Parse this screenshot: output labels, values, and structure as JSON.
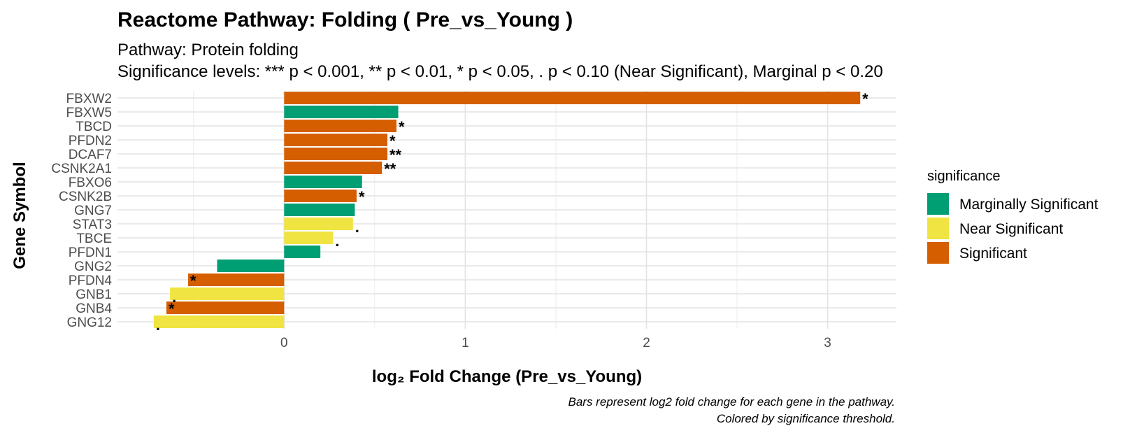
{
  "chart_data": {
    "type": "bar",
    "orientation": "horizontal",
    "title": "Reactome Pathway: Folding ( Pre_vs_Young )",
    "subtitle_lines": [
      "Pathway: Protein folding",
      "Significance levels: *** p < 0.001, ** p < 0.01, * p < 0.05, . p < 0.10 (Near Significant), Marginal p < 0.20"
    ],
    "xlabel": "log₂ Fold Change (Pre_vs_Young)",
    "ylabel": "Gene Symbol",
    "xlim": [
      -0.92,
      3.38
    ],
    "x_ticks": [
      0,
      1,
      2,
      3
    ],
    "grid": true,
    "legend": {
      "title": "significance",
      "position": "right",
      "entries": [
        {
          "label": "Marginally Significant",
          "color": "#009E73"
        },
        {
          "label": "Near Significant",
          "color": "#F0E442"
        },
        {
          "label": "Significant",
          "color": "#D55E00"
        }
      ]
    },
    "bars": [
      {
        "gene": "FBXW2",
        "value": 3.18,
        "significance": "Significant",
        "label": "*"
      },
      {
        "gene": "FBXW5",
        "value": 0.63,
        "significance": "Marginally Significant",
        "label": ""
      },
      {
        "gene": "TBCD",
        "value": 0.62,
        "significance": "Significant",
        "label": "*"
      },
      {
        "gene": "PFDN2",
        "value": 0.57,
        "significance": "Significant",
        "label": "*"
      },
      {
        "gene": "DCAF7",
        "value": 0.57,
        "significance": "Significant",
        "label": "**"
      },
      {
        "gene": "CSNK2A1",
        "value": 0.54,
        "significance": "Significant",
        "label": "**"
      },
      {
        "gene": "FBXO6",
        "value": 0.43,
        "significance": "Marginally Significant",
        "label": ""
      },
      {
        "gene": "CSNK2B",
        "value": 0.4,
        "significance": "Significant",
        "label": "*"
      },
      {
        "gene": "GNG7",
        "value": 0.39,
        "significance": "Marginally Significant",
        "label": ""
      },
      {
        "gene": "STAT3",
        "value": 0.38,
        "significance": "Near Significant",
        "label": "."
      },
      {
        "gene": "TBCE",
        "value": 0.27,
        "significance": "Near Significant",
        "label": "."
      },
      {
        "gene": "PFDN1",
        "value": 0.2,
        "significance": "Marginally Significant",
        "label": ""
      },
      {
        "gene": "GNG2",
        "value": -0.37,
        "significance": "Marginally Significant",
        "label": ""
      },
      {
        "gene": "PFDN4",
        "value": -0.53,
        "significance": "Significant",
        "label": "*"
      },
      {
        "gene": "GNB1",
        "value": -0.63,
        "significance": "Near Significant",
        "label": "."
      },
      {
        "gene": "GNB4",
        "value": -0.65,
        "significance": "Significant",
        "label": "*"
      },
      {
        "gene": "GNG12",
        "value": -0.72,
        "significance": "Near Significant",
        "label": "."
      }
    ],
    "caption_lines": [
      "Bars represent log2 fold change for each gene in the pathway.",
      "Colored by significance threshold."
    ]
  }
}
